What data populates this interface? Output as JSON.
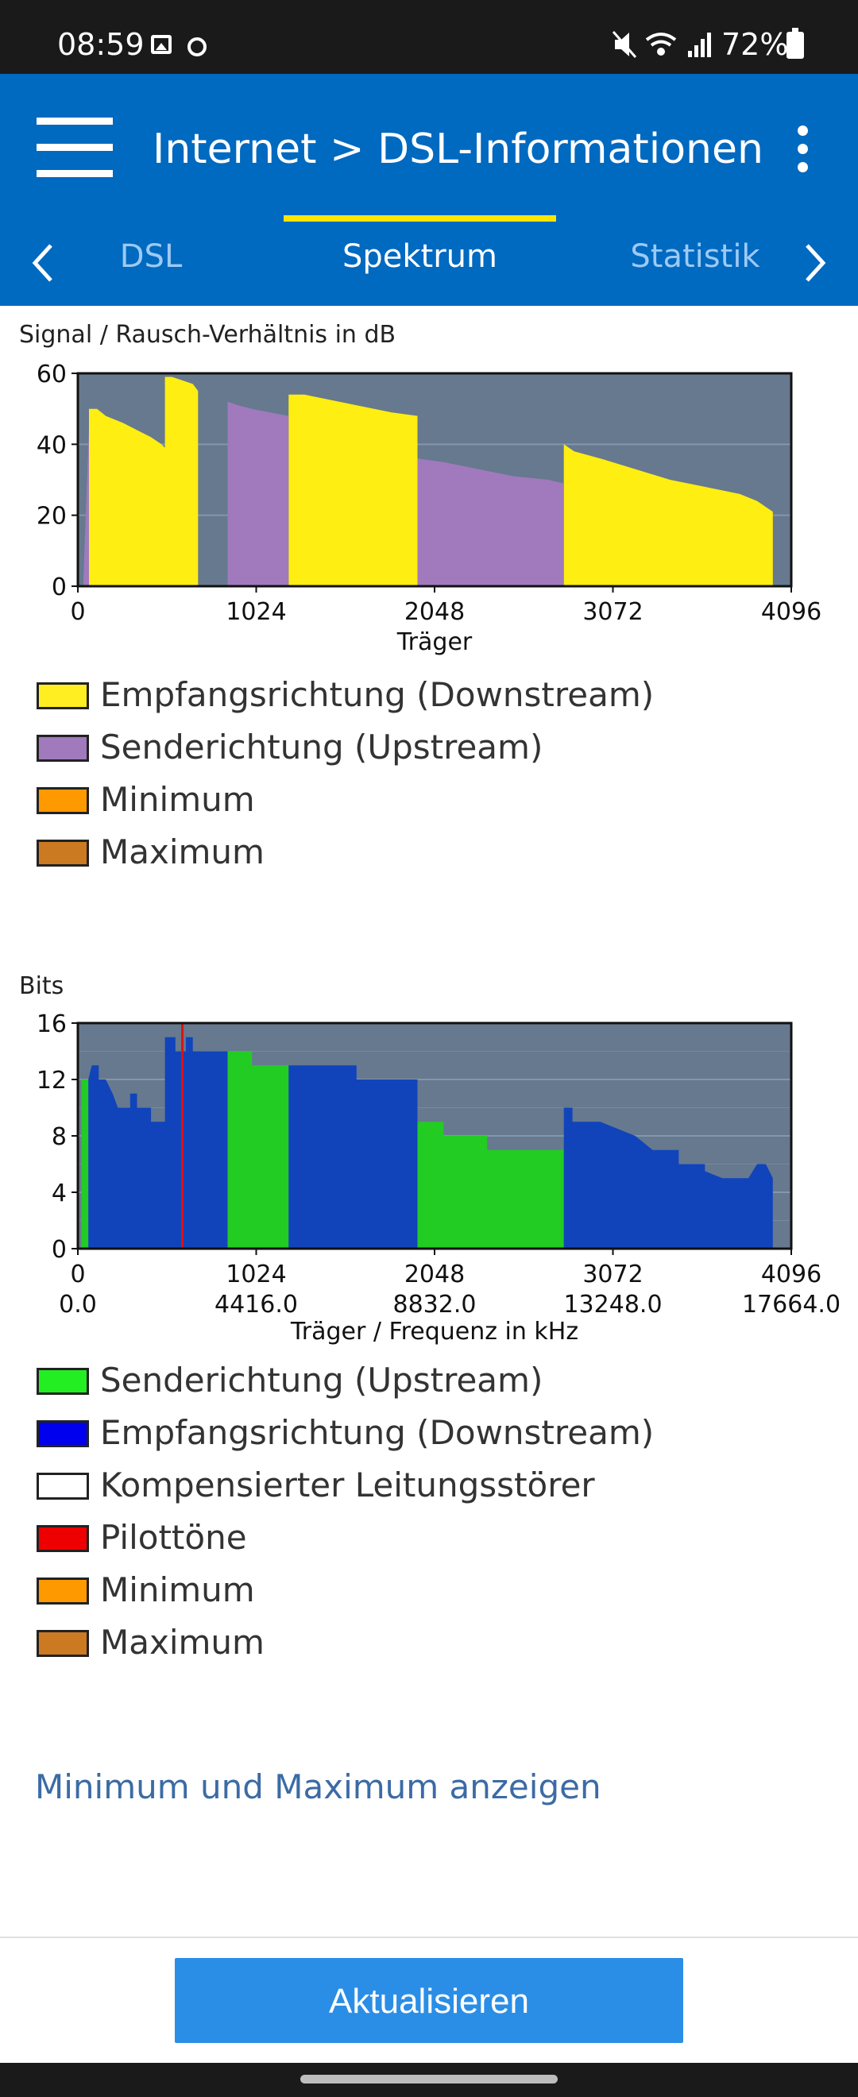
{
  "status_bar": {
    "time": "08:59",
    "battery_text": "72%",
    "icons": [
      "gallery-icon",
      "circle-icon",
      "mute-icon",
      "wifi-icon",
      "signal-icon",
      "battery-icon"
    ]
  },
  "app_bar": {
    "title": "Internet > DSL-Informationen",
    "tabs": [
      {
        "label": "DSL",
        "active": false
      },
      {
        "label": "Spektrum",
        "active": true
      },
      {
        "label": "Statistik",
        "active": false
      }
    ]
  },
  "snr_chart": {
    "title": "Signal / Rausch-Verhältnis in dB",
    "legend": [
      {
        "label": "Empfangsrichtung (Downstream)",
        "color": "#ffee22"
      },
      {
        "label": "Senderichtung (Upstream)",
        "color": "#a07abc"
      },
      {
        "label": "Minimum",
        "color": "#ff9900"
      },
      {
        "label": "Maximum",
        "color": "#cc7a22"
      }
    ]
  },
  "bits_chart": {
    "title": "Bits",
    "legend": [
      {
        "label": "Senderichtung (Upstream)",
        "color": "#22ee22"
      },
      {
        "label": "Empfangsrichtung (Downstream)",
        "color": "#0000ee"
      },
      {
        "label": "Kompensierter Leitungsstörer",
        "color": "#ffffff"
      },
      {
        "label": "Pilottöne",
        "color": "#ee0000"
      },
      {
        "label": "Minimum",
        "color": "#ff9900"
      },
      {
        "label": "Maximum",
        "color": "#cc7a22"
      }
    ]
  },
  "chart_data": [
    {
      "type": "area",
      "ylabel": "Signal / Rausch-Verhältnis in dB",
      "xlabel": "Träger",
      "xlim": [
        0,
        4096
      ],
      "ylim": [
        0,
        60
      ],
      "xticks": [
        0,
        1024,
        2048,
        3072,
        4096
      ],
      "yticks": [
        0,
        20,
        40,
        60
      ],
      "grid": true,
      "series": [
        {
          "name": "Empfangsrichtung (Downstream)",
          "color": "#ffee11",
          "segments": [
            [
              [
                64,
                50
              ],
              [
                110,
                50
              ],
              [
                160,
                48
              ],
              [
                260,
                46
              ],
              [
                340,
                44
              ],
              [
                420,
                42
              ],
              [
                480,
                40
              ],
              [
                500,
                39
              ],
              [
                500,
                59
              ],
              [
                540,
                59
              ],
              [
                600,
                58
              ],
              [
                660,
                57
              ],
              [
                690,
                55
              ],
              [
                690,
                0
              ]
            ],
            [
              [
                1210,
                54
              ],
              [
                1300,
                54
              ],
              [
                1400,
                53
              ],
              [
                1600,
                51
              ],
              [
                1800,
                49
              ],
              [
                1950,
                48
              ],
              [
                1950,
                0
              ]
            ],
            [
              [
                2790,
                40
              ],
              [
                2850,
                38
              ],
              [
                3000,
                36
              ],
              [
                3200,
                33
              ],
              [
                3400,
                30
              ],
              [
                3600,
                28
              ],
              [
                3800,
                26
              ],
              [
                3900,
                24
              ],
              [
                3990,
                21
              ],
              [
                3990,
                0
              ]
            ]
          ]
        },
        {
          "name": "Senderichtung (Upstream)",
          "color": "#a07abc",
          "segments": [
            [
              [
                32,
                2
              ],
              [
                64,
                45
              ],
              [
                64,
                0
              ]
            ],
            [
              [
                860,
                52
              ],
              [
                920,
                51
              ],
              [
                1000,
                50
              ],
              [
                1100,
                49
              ],
              [
                1210,
                48
              ],
              [
                1210,
                0
              ]
            ],
            [
              [
                1950,
                36
              ],
              [
                2100,
                35
              ],
              [
                2300,
                33
              ],
              [
                2500,
                31
              ],
              [
                2700,
                30
              ],
              [
                2790,
                29
              ],
              [
                2790,
                0
              ]
            ]
          ]
        }
      ]
    },
    {
      "type": "area",
      "ylabel": "Bits",
      "xlabel": "Träger / Frequenz in kHz",
      "xlim": [
        0,
        4096
      ],
      "ylim": [
        0,
        16
      ],
      "xticks": [
        0,
        1024,
        2048,
        3072,
        4096
      ],
      "xticks_secondary": [
        "0.0",
        "4416.0",
        "8832.0",
        "13248.0",
        "17664.0"
      ],
      "yticks": [
        0,
        4,
        8,
        12,
        16
      ],
      "grid": true,
      "pilot_tone_x": 600,
      "series": [
        {
          "name": "Senderichtung (Upstream)",
          "color": "#22cc22",
          "segments": [
            [
              [
                20,
                12
              ],
              [
                60,
                12
              ],
              [
                60,
                0
              ]
            ],
            [
              [
                860,
                14
              ],
              [
                1000,
                14
              ],
              [
                1000,
                13
              ],
              [
                1210,
                13
              ],
              [
                1210,
                0
              ]
            ],
            [
              [
                1950,
                9
              ],
              [
                2100,
                9
              ],
              [
                2100,
                8
              ],
              [
                2350,
                8
              ],
              [
                2350,
                7
              ],
              [
                2790,
                7
              ],
              [
                2790,
                0
              ]
            ]
          ]
        },
        {
          "name": "Empfangsrichtung (Downstream)",
          "color": "#1144bb",
          "segments": [
            [
              [
                60,
                12
              ],
              [
                80,
                13
              ],
              [
                120,
                13
              ],
              [
                120,
                12
              ],
              [
                160,
                12
              ],
              [
                200,
                11
              ],
              [
                230,
                10
              ],
              [
                300,
                10
              ],
              [
                300,
                11
              ],
              [
                340,
                11
              ],
              [
                340,
                10
              ],
              [
                420,
                10
              ],
              [
                420,
                9
              ],
              [
                500,
                9
              ],
              [
                500,
                15
              ],
              [
                560,
                15
              ],
              [
                560,
                14
              ],
              [
                620,
                14
              ],
              [
                620,
                15
              ],
              [
                660,
                15
              ],
              [
                660,
                14
              ],
              [
                860,
                14
              ],
              [
                860,
                0
              ]
            ],
            [
              [
                1210,
                13
              ],
              [
                1600,
                13
              ],
              [
                1600,
                12
              ],
              [
                1950,
                12
              ],
              [
                1950,
                0
              ]
            ],
            [
              [
                2790,
                10
              ],
              [
                2840,
                10
              ],
              [
                2840,
                9
              ],
              [
                3000,
                9
              ],
              [
                3100,
                8.5
              ],
              [
                3200,
                8
              ],
              [
                3300,
                7
              ],
              [
                3450,
                7
              ],
              [
                3450,
                6
              ],
              [
                3600,
                6
              ],
              [
                3600,
                5.5
              ],
              [
                3700,
                5
              ],
              [
                3850,
                5
              ],
              [
                3900,
                6
              ],
              [
                3950,
                6
              ],
              [
                3990,
                5
              ],
              [
                3990,
                0
              ]
            ]
          ]
        }
      ]
    }
  ],
  "actions": {
    "show_minmax_link": "Minimum und Maximum anzeigen",
    "update_button": "Aktualisieren"
  }
}
